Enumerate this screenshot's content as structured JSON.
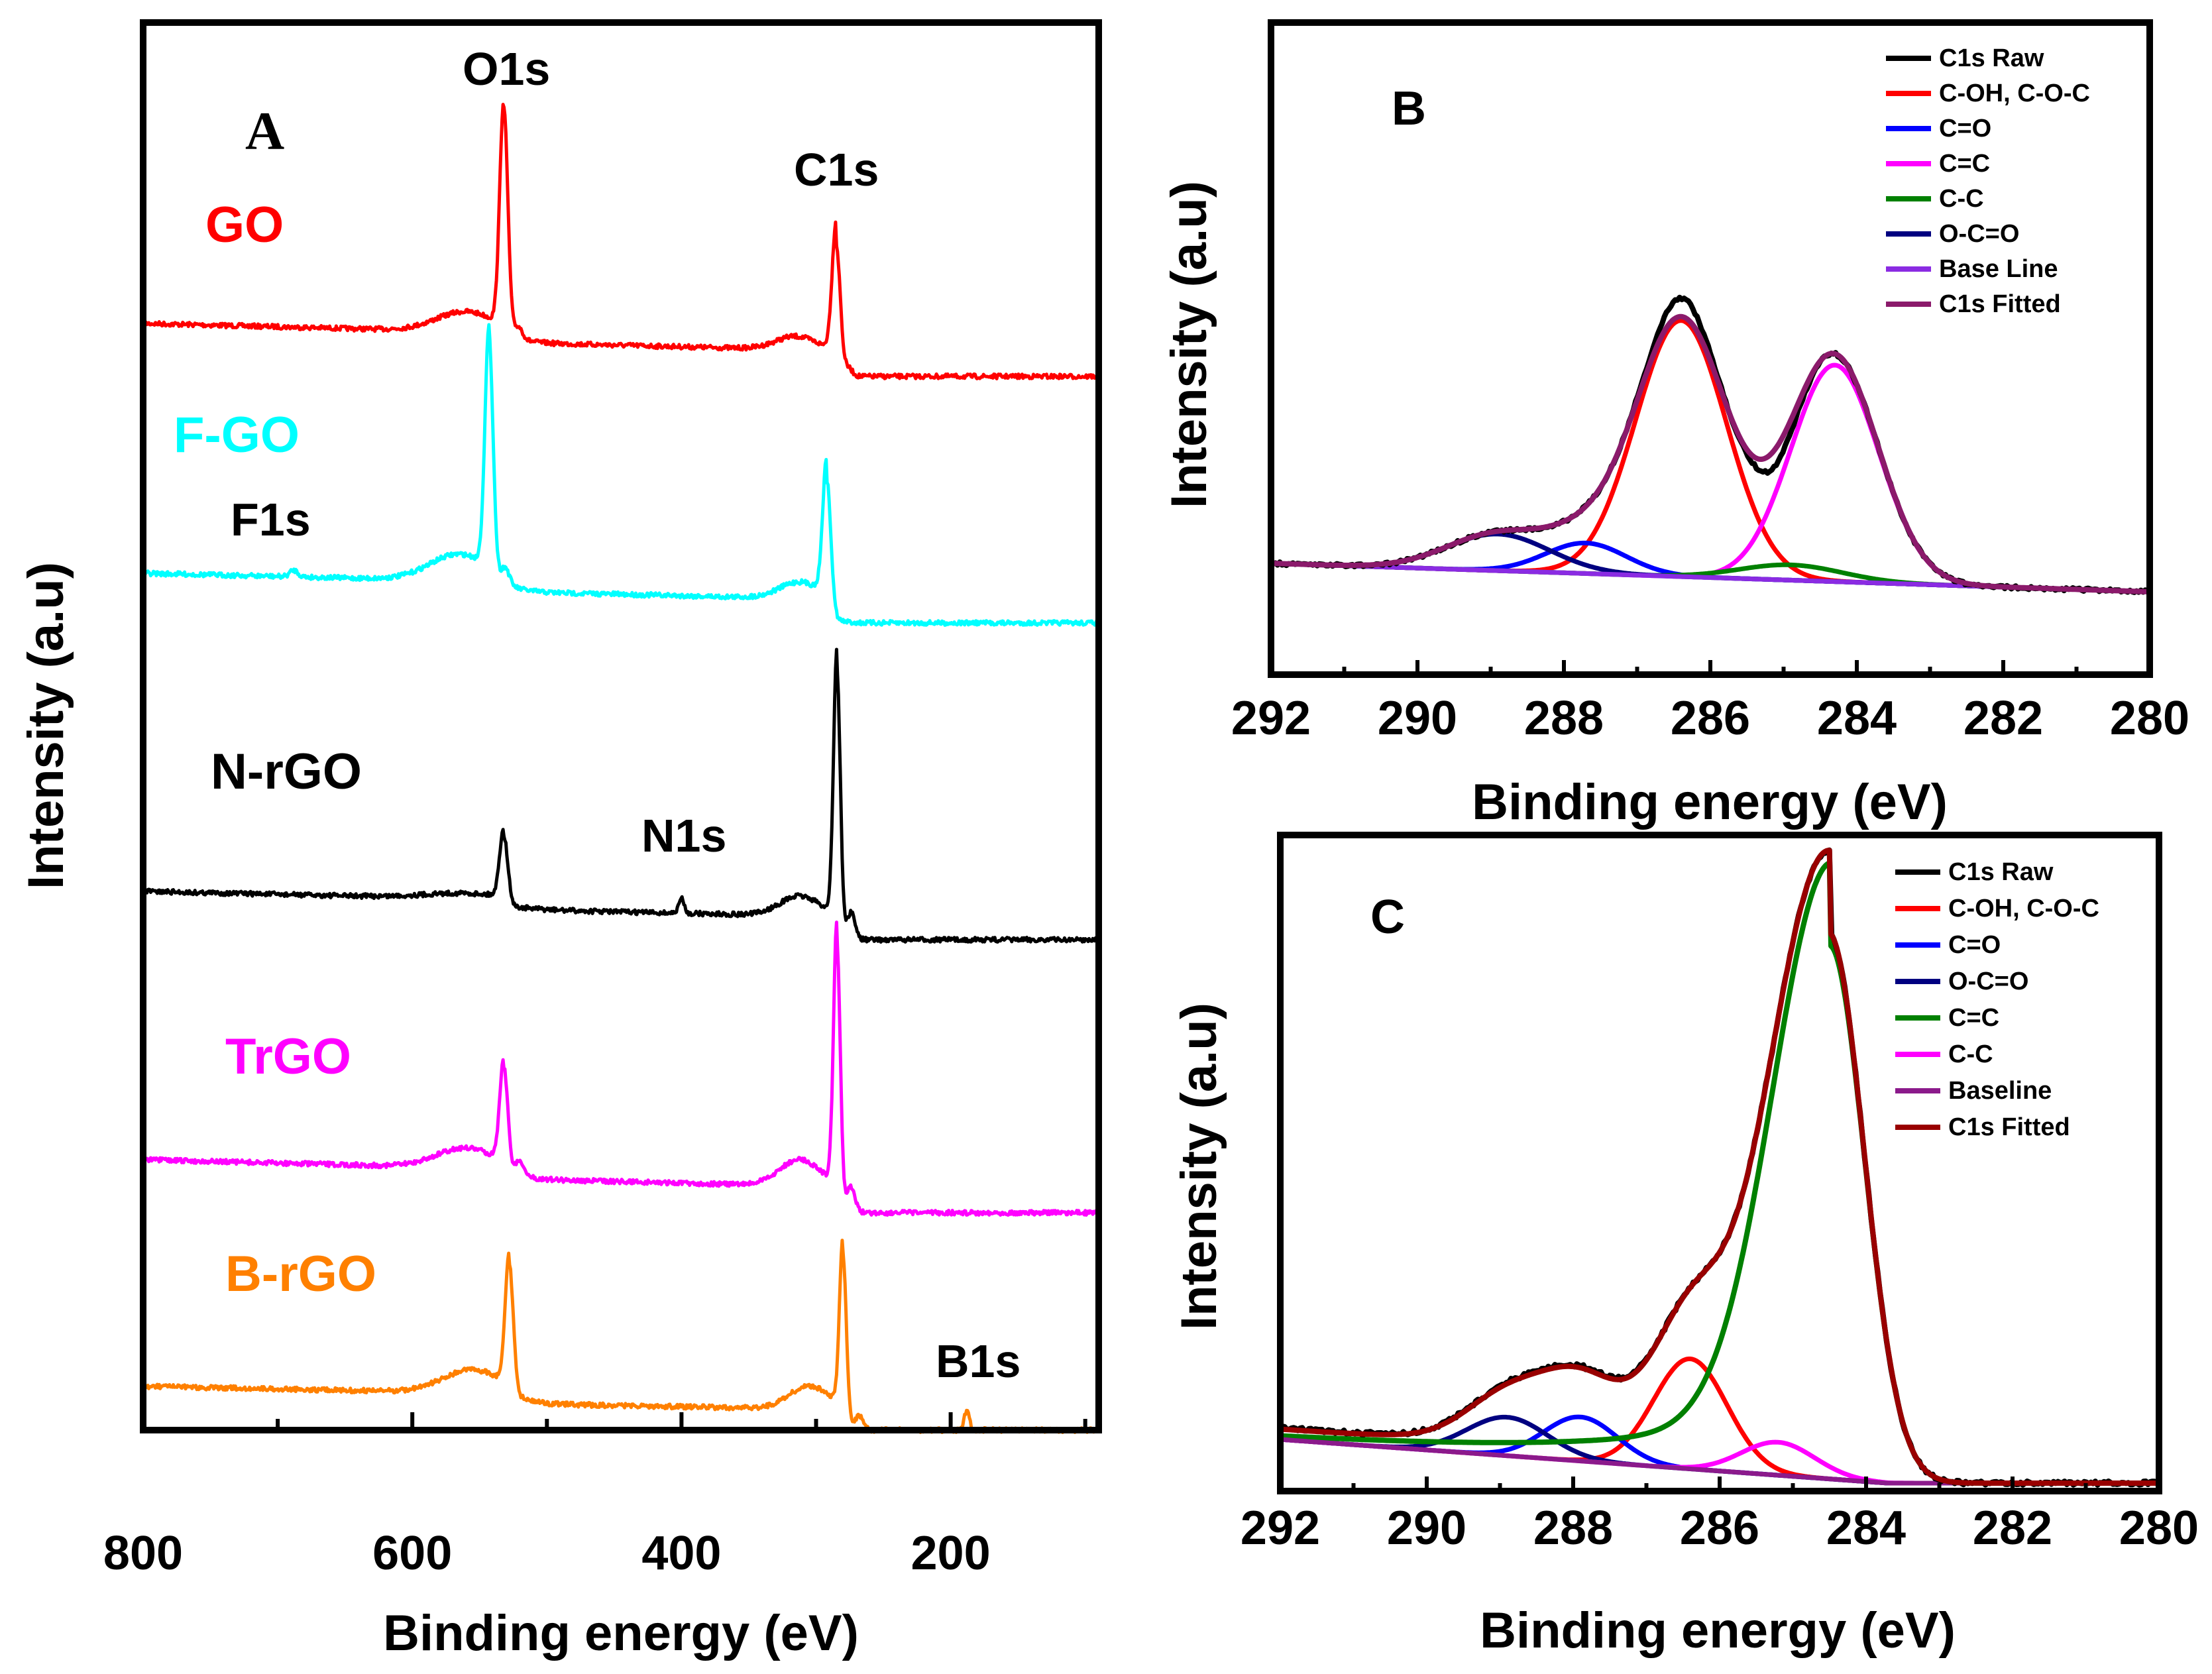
{
  "chart_data": [
    {
      "panel": "A",
      "type": "line",
      "title": "",
      "xlabel": "Binding energy (eV)",
      "ylabel": "Intensity (a.u)",
      "xlim": [
        800,
        90
      ],
      "xticks": [
        "800",
        "600",
        "400",
        "200"
      ],
      "series": [
        {
          "name": "GO",
          "color": "#ff0000",
          "peaks": [
            {
              "label": "O1s",
              "energy_eV": 532
            },
            {
              "label": "C1s",
              "energy_eV": 285
            }
          ]
        },
        {
          "name": "F-GO",
          "color": "#00ffff",
          "peaks": [
            {
              "label": "F1s",
              "energy_eV": 688
            },
            {
              "label": "O1s",
              "energy_eV": 543
            },
            {
              "label": "C1s",
              "energy_eV": 292
            }
          ]
        },
        {
          "name": "N-rGO",
          "color": "#000000",
          "peaks": [
            {
              "label": "O1s",
              "energy_eV": 532
            },
            {
              "label": "N1s",
              "energy_eV": 400
            },
            {
              "label": "C1s",
              "energy_eV": 284.5
            }
          ]
        },
        {
          "name": "TrGO",
          "color": "#ff00ff",
          "peaks": [
            {
              "label": "O1s",
              "energy_eV": 532
            },
            {
              "label": "C1s",
              "energy_eV": 284.5
            }
          ]
        },
        {
          "name": "B-rGO",
          "color": "#ff8000",
          "peaks": [
            {
              "label": "O1s",
              "energy_eV": 528
            },
            {
              "label": "C1s",
              "energy_eV": 280
            },
            {
              "label": "B1s",
              "energy_eV": 188
            }
          ]
        }
      ],
      "annotations": [
        "O1s",
        "C1s",
        "F1s",
        "N1s",
        "B1s"
      ]
    },
    {
      "panel": "B",
      "type": "line",
      "xlabel": "Binding energy (eV)",
      "ylabel": "Intensity (a.u)",
      "xlim": [
        292,
        280
      ],
      "xticks": [
        "292",
        "290",
        "288",
        "286",
        "284",
        "282",
        "280"
      ],
      "legend": "top-right",
      "series": [
        {
          "name": "C1s Raw",
          "color": "#000000",
          "peak_center_eV": 286.4
        },
        {
          "name": "C-OH, C-O-C",
          "color": "#ff0000",
          "peak_center_eV": 286.4,
          "relative_height": 0.84
        },
        {
          "name": "C=O",
          "color": "#0000ff",
          "peak_center_eV": 287.7,
          "relative_height": 0.1
        },
        {
          "name": "C=C",
          "color": "#ff00ff",
          "peak_center_eV": 284.3,
          "relative_height": 0.71
        },
        {
          "name": "C-C",
          "color": "#008000",
          "peak_center_eV": 284.9,
          "relative_height": 0.05
        },
        {
          "name": "O-C=O",
          "color": "#000080",
          "peak_center_eV": 288.9,
          "relative_height": 0.12
        },
        {
          "name": "Base Line",
          "color": "#8a2be2"
        },
        {
          "name": "C1s Fitted",
          "color": "#8b1a6b"
        }
      ]
    },
    {
      "panel": "C",
      "type": "line",
      "xlabel": "Binding energy (eV)",
      "ylabel": "Intensity (a.u)",
      "xlim": [
        292,
        280
      ],
      "xticks": [
        "292",
        "290",
        "288",
        "286",
        "284",
        "282",
        "280"
      ],
      "legend": "top-right",
      "series": [
        {
          "name": "C1s Raw",
          "color": "#000000",
          "peak_center_eV": 284.5
        },
        {
          "name": "C-OH, C-O-C",
          "color": "#ff0000",
          "peak_center_eV": 286.4,
          "relative_height": 0.2
        },
        {
          "name": "C=O",
          "color": "#0000ff",
          "peak_center_eV": 287.9,
          "relative_height": 0.08
        },
        {
          "name": "O-C=O",
          "color": "#000080",
          "peak_center_eV": 288.9,
          "relative_height": 0.07
        },
        {
          "name": "C=C",
          "color": "#008000",
          "peak_center_eV": 284.5,
          "relative_height": 0.97
        },
        {
          "name": "C-C",
          "color": "#ff00ff",
          "peak_center_eV": 285.2,
          "relative_height": 0.06
        },
        {
          "name": "Baseline",
          "color": "#8b1a8b"
        },
        {
          "name": "C1s Fitted",
          "color": "#990000"
        }
      ]
    }
  ]
}
